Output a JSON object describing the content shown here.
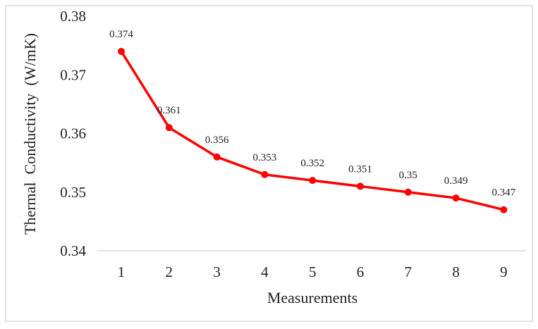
{
  "chart_data": {
    "type": "line",
    "title": "",
    "xlabel": "Measurements",
    "ylabel": "Thermal  Conductivity  (W/mK)",
    "categories": [
      "1",
      "2",
      "3",
      "4",
      "5",
      "6",
      "7",
      "8",
      "9"
    ],
    "series": [
      {
        "values": [
          0.374,
          0.361,
          0.356,
          0.353,
          0.352,
          0.351,
          0.35,
          0.349,
          0.347
        ],
        "labels": [
          "0.374",
          "0.361",
          "0.356",
          "0.353",
          "0.352",
          "0.351",
          "0.35",
          "0.349",
          "0.347"
        ],
        "color": "#ff0000"
      }
    ],
    "ylim": [
      0.34,
      0.38
    ],
    "yticks": [
      "0.34",
      "0.35",
      "0.36",
      "0.37",
      "0.38"
    ],
    "grid": false,
    "legend": "none"
  }
}
